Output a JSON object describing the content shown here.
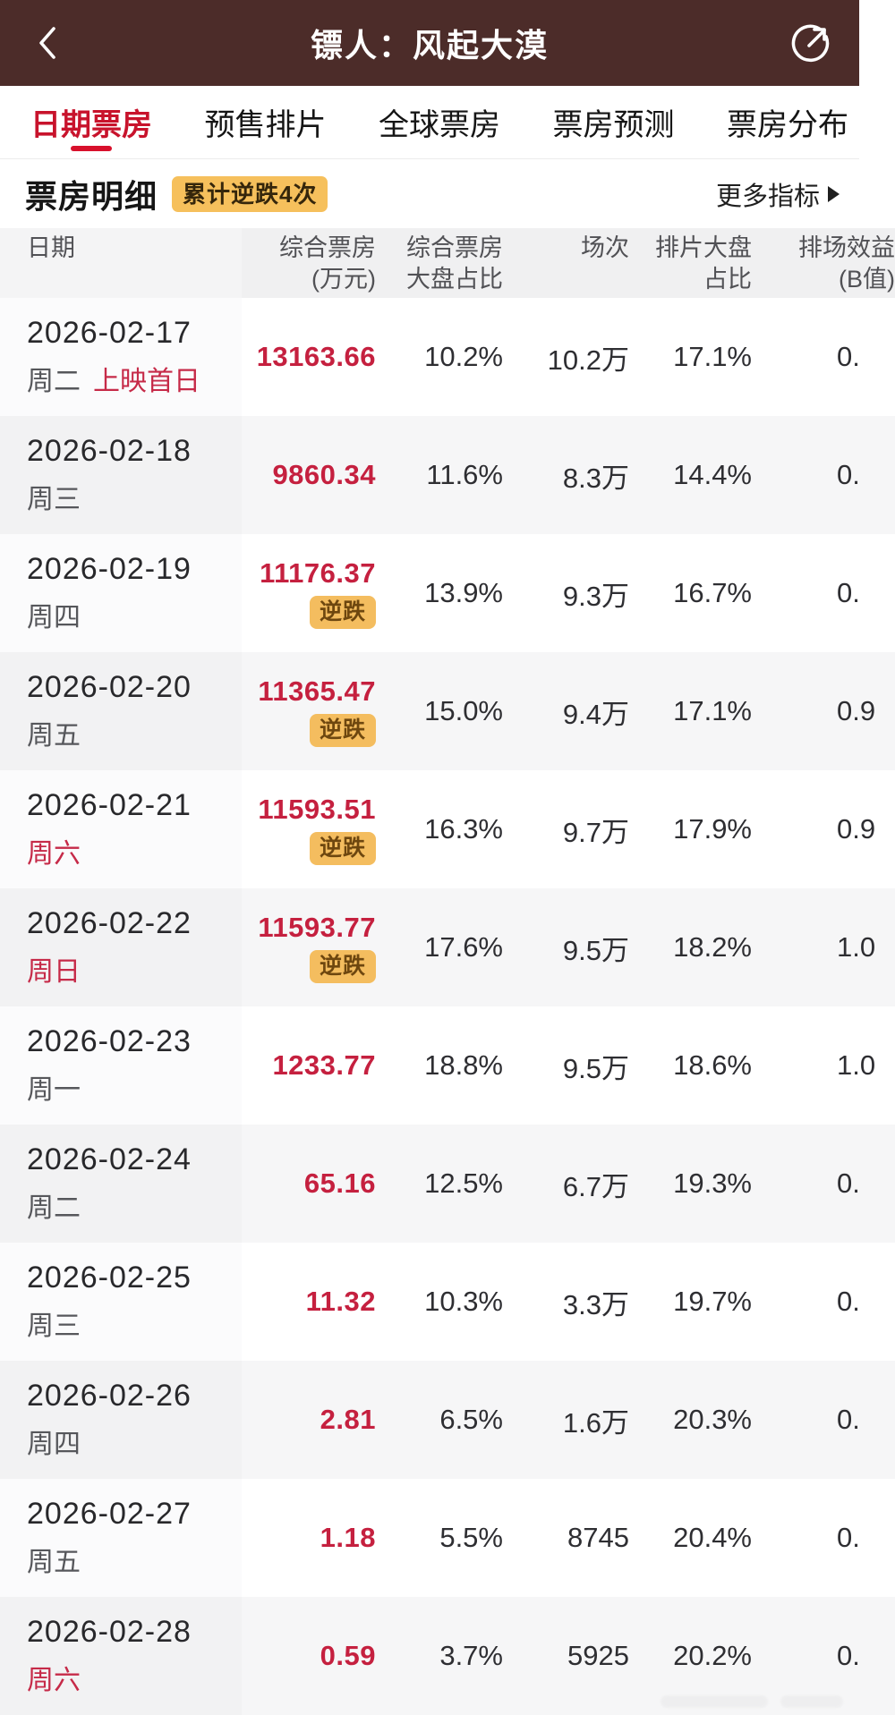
{
  "colors": {
    "appbar_bg": "#4c2c29",
    "accent_red": "#c5203f",
    "badge_amber": "#f6c05c",
    "active_tab_red": "#c8132c"
  },
  "app_bar": {
    "title": "镖人：风起大漠",
    "back_icon": "chevron-left-icon",
    "share_icon": "share-circle-arrow-icon"
  },
  "tabs": [
    {
      "label": "日期票房",
      "active": true
    },
    {
      "label": "预售排片",
      "active": false
    },
    {
      "label": "全球票房",
      "active": false
    },
    {
      "label": "票房预测",
      "active": false
    },
    {
      "label": "票房分布",
      "active": false
    }
  ],
  "section": {
    "title": "票房明细",
    "badge": "累计逆跌4次",
    "more_label": "更多指标"
  },
  "table": {
    "columns": [
      {
        "line1": "日期",
        "line2": ""
      },
      {
        "line1": "综合票房",
        "line2": "(万元)"
      },
      {
        "line1": "综合票房",
        "line2": "大盘占比"
      },
      {
        "line1": "场次",
        "line2": ""
      },
      {
        "line1": "排片大盘",
        "line2": "占比"
      },
      {
        "line1": "排场效益",
        "line2": "(B值)"
      }
    ],
    "reverse_badge_label": "逆跌",
    "rows": [
      {
        "date": "2026-02-17",
        "weekday": "周二",
        "weekend": false,
        "tag": "上映首日",
        "boxoffice": "13163.66",
        "share": "10.2%",
        "sessions": "10.2万",
        "schedule_share": "17.1%",
        "b_value": "0.",
        "reverse_badge": false
      },
      {
        "date": "2026-02-18",
        "weekday": "周三",
        "weekend": false,
        "tag": "",
        "boxoffice": "9860.34",
        "share": "11.6%",
        "sessions": "8.3万",
        "schedule_share": "14.4%",
        "b_value": "0.",
        "reverse_badge": false
      },
      {
        "date": "2026-02-19",
        "weekday": "周四",
        "weekend": false,
        "tag": "",
        "boxoffice": "11176.37",
        "share": "13.9%",
        "sessions": "9.3万",
        "schedule_share": "16.7%",
        "b_value": "0.",
        "reverse_badge": true
      },
      {
        "date": "2026-02-20",
        "weekday": "周五",
        "weekend": false,
        "tag": "",
        "boxoffice": "11365.47",
        "share": "15.0%",
        "sessions": "9.4万",
        "schedule_share": "17.1%",
        "b_value": "0.9",
        "reverse_badge": true
      },
      {
        "date": "2026-02-21",
        "weekday": "周六",
        "weekend": true,
        "tag": "",
        "boxoffice": "11593.51",
        "share": "16.3%",
        "sessions": "9.7万",
        "schedule_share": "17.9%",
        "b_value": "0.9",
        "reverse_badge": true
      },
      {
        "date": "2026-02-22",
        "weekday": "周日",
        "weekend": true,
        "tag": "",
        "boxoffice": "11593.77",
        "share": "17.6%",
        "sessions": "9.5万",
        "schedule_share": "18.2%",
        "b_value": "1.0",
        "reverse_badge": true
      },
      {
        "date": "2026-02-23",
        "weekday": "周一",
        "weekend": false,
        "tag": "",
        "boxoffice": "1233.77",
        "share": "18.8%",
        "sessions": "9.5万",
        "schedule_share": "18.6%",
        "b_value": "1.0",
        "reverse_badge": false
      },
      {
        "date": "2026-02-24",
        "weekday": "周二",
        "weekend": false,
        "tag": "",
        "boxoffice": "65.16",
        "share": "12.5%",
        "sessions": "6.7万",
        "schedule_share": "19.3%",
        "b_value": "0.",
        "reverse_badge": false
      },
      {
        "date": "2026-02-25",
        "weekday": "周三",
        "weekend": false,
        "tag": "",
        "boxoffice": "11.32",
        "share": "10.3%",
        "sessions": "3.3万",
        "schedule_share": "19.7%",
        "b_value": "0.",
        "reverse_badge": false
      },
      {
        "date": "2026-02-26",
        "weekday": "周四",
        "weekend": false,
        "tag": "",
        "boxoffice": "2.81",
        "share": "6.5%",
        "sessions": "1.6万",
        "schedule_share": "20.3%",
        "b_value": "0.",
        "reverse_badge": false
      },
      {
        "date": "2026-02-27",
        "weekday": "周五",
        "weekend": false,
        "tag": "",
        "boxoffice": "1.18",
        "share": "5.5%",
        "sessions": "8745",
        "schedule_share": "20.4%",
        "b_value": "0.",
        "reverse_badge": false
      },
      {
        "date": "2026-02-28",
        "weekday": "周六",
        "weekend": true,
        "tag": "",
        "boxoffice": "0.59",
        "share": "3.7%",
        "sessions": "5925",
        "schedule_share": "20.2%",
        "b_value": "0.",
        "reverse_badge": false
      }
    ]
  }
}
